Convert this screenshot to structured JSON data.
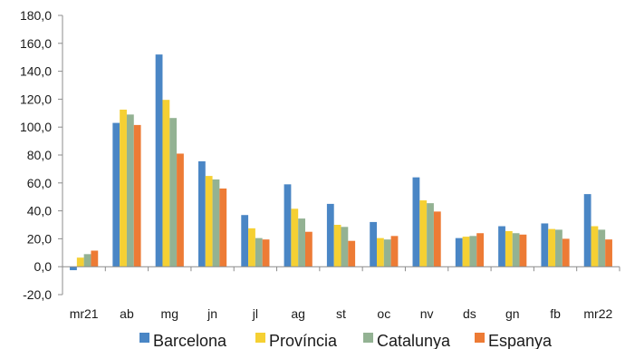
{
  "chart_data": {
    "type": "bar",
    "title": "",
    "xlabel": "",
    "ylabel": "",
    "ylim": [
      -20,
      180
    ],
    "yticks": [
      -20,
      0,
      20,
      40,
      60,
      80,
      100,
      120,
      140,
      160,
      180
    ],
    "ytick_labels": [
      "-20,0",
      "0,0",
      "20,0",
      "40,0",
      "60,0",
      "80,0",
      "100,0",
      "120,0",
      "140,0",
      "160,0",
      "180,0"
    ],
    "grid": false,
    "legend_position": "bottom",
    "categories": [
      "mr21",
      "ab",
      "mg",
      "jn",
      "jl",
      "ag",
      "st",
      "oc",
      "nv",
      "ds",
      "gn",
      "fb",
      "mr22"
    ],
    "series": [
      {
        "name": "Barcelona",
        "color": "#4a86c5",
        "values": [
          -2.5,
          103,
          152,
          75.5,
          37,
          59,
          45,
          32,
          64,
          20.5,
          29,
          31,
          52
        ]
      },
      {
        "name": "Província",
        "color": "#f5d033",
        "values": [
          6.5,
          112.5,
          119.5,
          65,
          27.5,
          41.5,
          30,
          20.5,
          47.5,
          21.5,
          25.5,
          27,
          29
        ]
      },
      {
        "name": "Catalunya",
        "color": "#93b293",
        "values": [
          9,
          109,
          106.5,
          62.5,
          20.5,
          34.5,
          28.5,
          19.5,
          45.5,
          22,
          24,
          26.5,
          26.5
        ]
      },
      {
        "name": "Espanya",
        "color": "#ed7b35",
        "values": [
          11.5,
          101.5,
          81,
          56,
          19.5,
          25,
          18.5,
          22,
          39.5,
          24,
          23,
          20,
          19.5
        ]
      }
    ]
  }
}
